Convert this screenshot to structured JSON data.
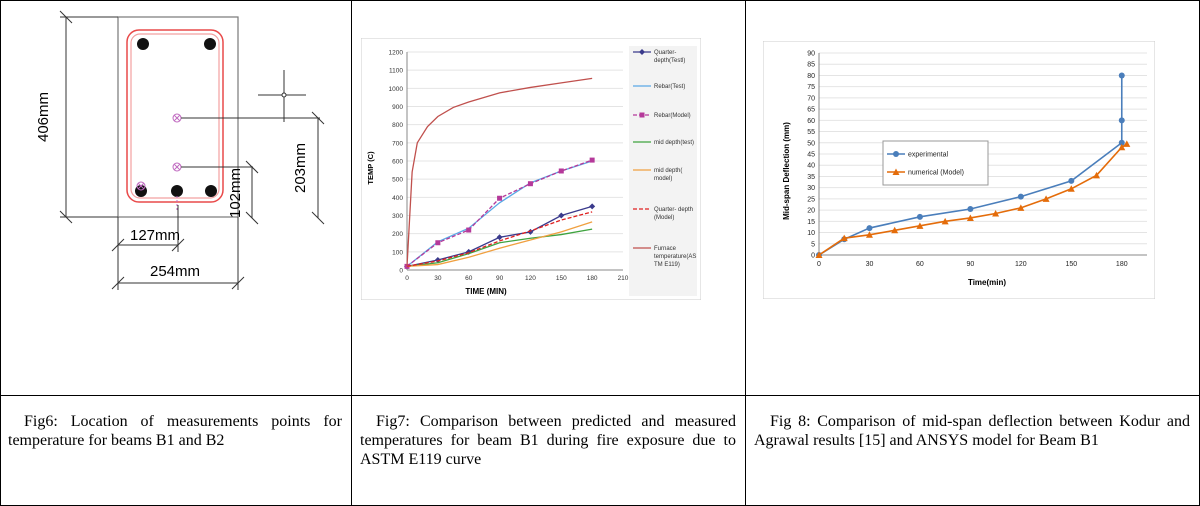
{
  "fig6": {
    "dim_height": "406mm",
    "dim_width": "254mm",
    "dim_half_width": "127mm",
    "dim_half_depth": "203mm",
    "dim_quarter_depth": "102mm",
    "caption": "Fig6: Location of measurements points for temperature for beams B1 and B2"
  },
  "fig7": {
    "caption": "Fig7: Comparison between predicted and measured temperatures for beam B1 during fire exposure due to ASTM E119 curve",
    "chart_data": {
      "type": "line",
      "xlabel": "TIME (MIN)",
      "ylabel": "TEMP (C)",
      "xlim": [
        0,
        210
      ],
      "ylim": [
        0,
        1200
      ],
      "xticks": [
        0,
        30,
        60,
        90,
        120,
        150,
        180,
        210
      ],
      "yticks": [
        0,
        100,
        200,
        300,
        400,
        500,
        600,
        700,
        800,
        900,
        1000,
        1100,
        1200
      ],
      "series": [
        {
          "name": "Quarter-depth(Testl)",
          "color": "#3a3a8c",
          "marker": "diamond",
          "dash": false,
          "x": [
            0,
            30,
            60,
            90,
            120,
            150,
            180
          ],
          "y": [
            20,
            55,
            100,
            180,
            210,
            300,
            350
          ]
        },
        {
          "name": "Rebar(Test)",
          "color": "#5aa9e6",
          "marker": "none",
          "dash": false,
          "x": [
            0,
            30,
            60,
            90,
            120,
            150,
            180
          ],
          "y": [
            20,
            155,
            230,
            370,
            480,
            545,
            600
          ]
        },
        {
          "name": "Rebar(Model)",
          "color": "#b5399a",
          "marker": "square",
          "dash": true,
          "x": [
            0,
            30,
            60,
            90,
            120,
            150,
            180
          ],
          "y": [
            20,
            150,
            220,
            395,
            475,
            545,
            605
          ]
        },
        {
          "name": "mid depth(test)",
          "color": "#3fa33f",
          "marker": "none",
          "dash": false,
          "x": [
            0,
            30,
            60,
            90,
            120,
            150,
            180
          ],
          "y": [
            20,
            40,
            90,
            150,
            175,
            195,
            225
          ]
        },
        {
          "name": "mid depth( model)",
          "color": "#f0a040",
          "marker": "none",
          "dash": false,
          "x": [
            0,
            30,
            60,
            90,
            120,
            150,
            180
          ],
          "y": [
            20,
            30,
            70,
            120,
            165,
            210,
            265
          ]
        },
        {
          "name": "Quarter- depth (Model)",
          "color": "#e02020",
          "marker": "none",
          "dash": true,
          "x": [
            0,
            30,
            60,
            90,
            120,
            150,
            180
          ],
          "y": [
            20,
            50,
            95,
            160,
            215,
            275,
            320
          ]
        },
        {
          "name": "Furnace temperature(AS TM E119)",
          "color": "#c0504d",
          "marker": "none",
          "dash": false,
          "x": [
            0,
            5,
            10,
            20,
            30,
            45,
            60,
            90,
            120,
            150,
            180
          ],
          "y": [
            20,
            540,
            700,
            790,
            845,
            895,
            925,
            975,
            1005,
            1030,
            1055
          ]
        }
      ]
    }
  },
  "fig8": {
    "caption": "Fig 8: Comparison of mid-span deflection between Kodur and Agrawal results [15] and ANSYS model for Beam B1",
    "chart_data": {
      "type": "line",
      "xlabel": "Time(min)",
      "ylabel": "Mid-span Deflection (mm)",
      "xlim": [
        0,
        195
      ],
      "ylim": [
        0,
        90
      ],
      "xticks": [
        0,
        30,
        60,
        90,
        120,
        150,
        180
      ],
      "yticks": [
        0,
        5,
        10,
        15,
        20,
        25,
        30,
        35,
        40,
        45,
        50,
        55,
        60,
        65,
        70,
        75,
        80,
        85,
        90
      ],
      "series": [
        {
          "name": "experimental",
          "color": "#4a7ebb",
          "marker": "circle",
          "x": [
            0,
            15,
            30,
            60,
            90,
            120,
            150,
            180,
            180,
            180
          ],
          "y": [
            0,
            7,
            12,
            17,
            20.5,
            26,
            33,
            50,
            60,
            80
          ]
        },
        {
          "name": "numerical (Model)",
          "color": "#e46c0a",
          "marker": "triangle",
          "x": [
            0,
            15,
            30,
            45,
            60,
            75,
            90,
            105,
            120,
            135,
            150,
            165,
            180,
            183
          ],
          "y": [
            0,
            7.5,
            9,
            11,
            13,
            15,
            16.5,
            18.5,
            21,
            25,
            29.5,
            35.5,
            48,
            49.5
          ]
        }
      ]
    }
  }
}
